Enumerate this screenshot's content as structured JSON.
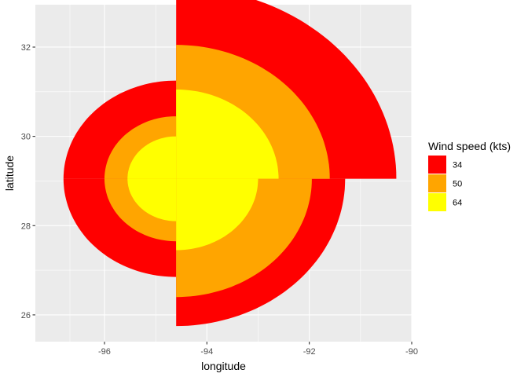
{
  "chart_data": {
    "type": "area",
    "title": "",
    "xlabel": "longitude",
    "ylabel": "latitude",
    "xlim": [
      -97.35,
      -90.0
    ],
    "ylim": [
      25.4,
      32.95
    ],
    "x_ticks": [
      -96,
      -94,
      -92,
      -90
    ],
    "y_ticks": [
      26,
      28,
      30,
      32
    ],
    "x_tick_labels": [
      "-96",
      "-94",
      "-92",
      "-90"
    ],
    "y_tick_labels": [
      "26",
      "28",
      "30",
      "32"
    ],
    "grid": true,
    "background": "#ebebeb",
    "center": {
      "lon": -94.6,
      "lat": 29.05
    },
    "quadrants": [
      "NE",
      "SE",
      "SW",
      "NW"
    ],
    "legend": {
      "title": "Wind speed (kts)",
      "position": "right"
    },
    "series": [
      {
        "name": "34",
        "color": "#ff0000",
        "radii_deg": {
          "NE": 4.3,
          "SE": 3.3,
          "SW": 2.2,
          "NW": 2.2
        }
      },
      {
        "name": "50",
        "color": "#ffa500",
        "radii_deg": {
          "NE": 3.0,
          "SE": 2.65,
          "SW": 1.4,
          "NW": 1.4
        }
      },
      {
        "name": "64",
        "color": "#ffff00",
        "radii_deg": {
          "NE": 2.0,
          "SE": 1.6,
          "SW": 0.95,
          "NW": 0.95
        }
      }
    ]
  }
}
